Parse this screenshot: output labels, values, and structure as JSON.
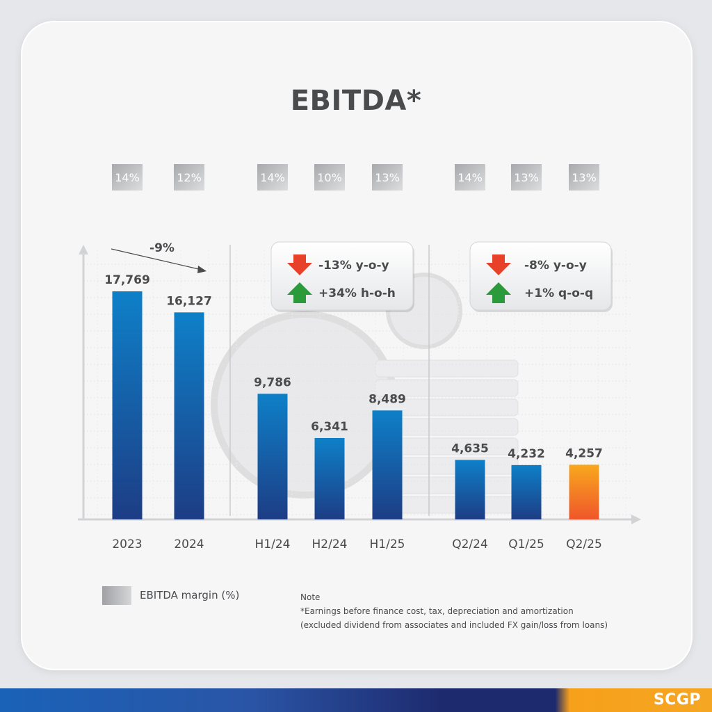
{
  "page": {
    "title": "EBITDA*",
    "legend_label": "EBITDA margin (%)",
    "note_title": "Note",
    "note_line1": "*Earnings before finance cost, tax, depreciation and amortization",
    "note_line2": "(excluded dividend from associates and included FX gain/loss from loans)",
    "logo": "SCGP"
  },
  "colors": {
    "bar_top": "#0e80c8",
    "bar_bottom": "#1d3d85",
    "highlight_top": "#f8a81e",
    "highlight_bottom": "#f0562a",
    "down_arrow": "#e8412a",
    "up_arrow": "#2a9a3a",
    "text": "#4a4b4d"
  },
  "chart_data": {
    "type": "bar",
    "title": "EBITDA*",
    "groups": [
      {
        "categories": [
          "2023",
          "2024"
        ],
        "values": [
          17769,
          16127
        ],
        "value_labels": [
          "17,769",
          "16,127"
        ],
        "margins": [
          "14%",
          "12%"
        ],
        "change_label": "-9%"
      },
      {
        "categories": [
          "H1/24",
          "H2/24",
          "H1/25"
        ],
        "values": [
          9786,
          6341,
          8489
        ],
        "value_labels": [
          "9,786",
          "6,341",
          "8,489"
        ],
        "margins": [
          "14%",
          "10%",
          "13%"
        ],
        "callouts": [
          {
            "direction": "down",
            "text": "-13% y-o-y"
          },
          {
            "direction": "up",
            "text": "+34% h-o-h"
          }
        ]
      },
      {
        "categories": [
          "Q2/24",
          "Q1/25",
          "Q2/25"
        ],
        "values": [
          4635,
          4232,
          4257
        ],
        "value_labels": [
          "4,635",
          "4,232",
          "4,257"
        ],
        "margins": [
          "14%",
          "13%",
          "13%"
        ],
        "highlight_last": true,
        "callouts": [
          {
            "direction": "down",
            "text": "-8% y-o-y"
          },
          {
            "direction": "up",
            "text": "+1% q-o-q"
          }
        ]
      }
    ],
    "legend": [
      "EBITDA margin (%)"
    ],
    "grid": true
  }
}
